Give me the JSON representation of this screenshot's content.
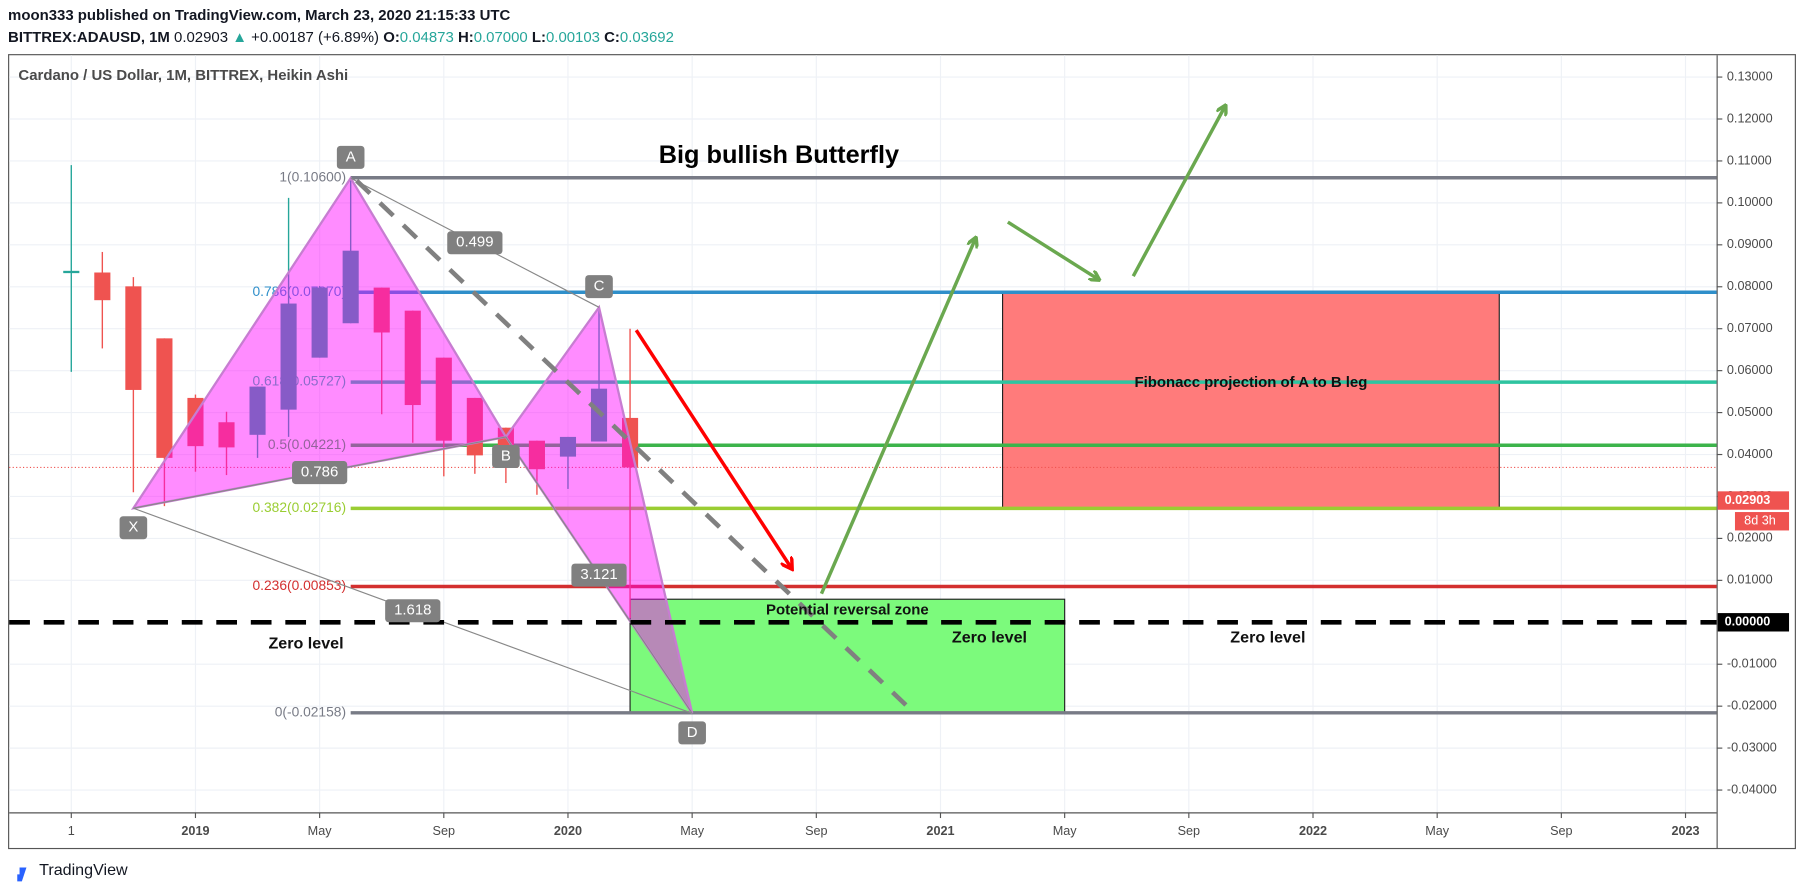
{
  "header": {
    "publisher": "moon333 published on TradingView.com, March 23, 2020 21:15:33 UTC",
    "symbol": "BITTREX:ADAUSD, 1M",
    "last": "0.02903",
    "arrow": "▲",
    "change": "+0.00187 (+6.89%)",
    "ohlc": [
      {
        "key": "O:",
        "value": "0.04873"
      },
      {
        "key": "H:",
        "value": "0.07000"
      },
      {
        "key": "L:",
        "value": "0.00103"
      },
      {
        "key": "C:",
        "value": "0.03692"
      }
    ]
  },
  "footer": {
    "brand": "TradingView"
  },
  "chart_data": {
    "type": "candlestick",
    "title": "Big bullish Butterfly",
    "legend": "Cardano / US Dollar, 1M, BITTREX, Heikin Ashi",
    "x": [
      "2018-09",
      "2018-10",
      "2018-11",
      "2018-12",
      "2019-01",
      "2019-02",
      "2019-03",
      "2019-04",
      "2019-05",
      "2019-06",
      "2019-07",
      "2019-08",
      "2019-09",
      "2019-10",
      "2019-11",
      "2019-12",
      "2020-01",
      "2020-02",
      "2020-03"
    ],
    "open": [
      0.0834,
      0.0834,
      0.0801,
      0.0677,
      0.0535,
      0.0477,
      0.0447,
      0.0507,
      0.0631,
      0.0713,
      0.0798,
      0.0743,
      0.0631,
      0.0535,
      0.0464,
      0.0433,
      0.0395,
      0.0431,
      0.04873
    ],
    "high": [
      0.109,
      0.0883,
      0.0823,
      0.0677,
      0.0543,
      0.0502,
      0.0562,
      0.1012,
      0.0802,
      0.1059,
      0.0798,
      0.0743,
      0.0631,
      0.0535,
      0.0464,
      0.0433,
      0.0442,
      0.0751,
      0.07
    ],
    "low": [
      0.0597,
      0.0653,
      0.031,
      0.0277,
      0.0359,
      0.0351,
      0.0392,
      0.0442,
      0.0631,
      0.0713,
      0.0496,
      0.0428,
      0.0348,
      0.0354,
      0.0332,
      0.0304,
      0.0318,
      0.0431,
      0.00103
    ],
    "close": [
      0.0838,
      0.0768,
      0.0554,
      0.0392,
      0.042,
      0.0417,
      0.0562,
      0.076,
      0.0798,
      0.0886,
      0.0691,
      0.0518,
      0.0433,
      0.0398,
      0.0406,
      0.0365,
      0.0442,
      0.0557,
      0.03692
    ],
    "up_color": "#26a69a",
    "down_color": "#ef5350",
    "ylim": [
      -0.0453,
      0.1352
    ],
    "yticks": [
      {
        "value": 0.13,
        "label": "0.13000"
      },
      {
        "value": 0.12,
        "label": "0.12000"
      },
      {
        "value": 0.11,
        "label": "0.11000"
      },
      {
        "value": 0.1,
        "label": "0.10000"
      },
      {
        "value": 0.09,
        "label": "0.09000"
      },
      {
        "value": 0.08,
        "label": "0.08000"
      },
      {
        "value": 0.07,
        "label": "0.07000"
      },
      {
        "value": 0.06,
        "label": "0.06000"
      },
      {
        "value": 0.05,
        "label": "0.05000"
      },
      {
        "value": 0.04,
        "label": "0.04000"
      },
      {
        "value": 0.03,
        "label": "0.03000"
      },
      {
        "value": 0.02,
        "label": "0.02000"
      },
      {
        "value": 0.01,
        "label": "0.01000"
      },
      {
        "value": -0.01,
        "label": "-0.01000"
      },
      {
        "value": -0.02,
        "label": "-0.02000"
      },
      {
        "value": -0.03,
        "label": "-0.03000"
      },
      {
        "value": -0.04,
        "label": "-0.04000"
      }
    ],
    "xlim": [
      "2018-07",
      "2023-02"
    ],
    "xticks": [
      {
        "value": "2018-09",
        "label": "1"
      },
      {
        "value": "2019-01",
        "label": "2019"
      },
      {
        "value": "2019-05",
        "label": "May"
      },
      {
        "value": "2019-09",
        "label": "Sep"
      },
      {
        "value": "2020-01",
        "label": "2020"
      },
      {
        "value": "2020-05",
        "label": "May"
      },
      {
        "value": "2020-09",
        "label": "Sep"
      },
      {
        "value": "2021-01",
        "label": "2021"
      },
      {
        "value": "2021-05",
        "label": "May"
      },
      {
        "value": "2021-09",
        "label": "Sep"
      },
      {
        "value": "2022-01",
        "label": "2022"
      },
      {
        "value": "2022-05",
        "label": "May"
      },
      {
        "value": "2022-09",
        "label": "Sep"
      },
      {
        "value": "2023-01",
        "label": "2023"
      }
    ],
    "grid": true,
    "price_tags": [
      {
        "value": 0.02903,
        "label": "0.02903",
        "color": "#ef5350"
      },
      {
        "value": 0,
        "label": "0.00000",
        "color": "#000000"
      }
    ],
    "countdown": "8d 3h",
    "last_close_line": 0.03692,
    "zero_line": 0,
    "zero_labels": [
      "Zero level",
      "Zero level",
      "Zero level"
    ],
    "fib_levels": [
      {
        "value": 0.106,
        "label": "1(0.10600)",
        "color": "#787b86"
      },
      {
        "value": 0.0787,
        "label": "0.786(0.07870)",
        "color": "#2f8fca"
      },
      {
        "value": 0.05727,
        "label": "0.618(0.05727)",
        "color": "#2ec4a0"
      },
      {
        "value": 0.04221,
        "label": "0.5(0.04221)",
        "color": "#3cb44b"
      },
      {
        "value": 0.02716,
        "label": "0.382(0.02716)",
        "color": "#9acd32"
      },
      {
        "value": 0.00853,
        "label": "0.236(0.00853)",
        "color": "#d32f2f"
      },
      {
        "value": -0.02158,
        "label": "0(-0.02158)",
        "color": "#787b86"
      }
    ],
    "pattern": {
      "color": "#ff00ff",
      "points": [
        {
          "label": "X",
          "x": "2018-11",
          "y": 0.0272
        },
        {
          "label": "A",
          "x": "2019-06",
          "y": 0.1059
        },
        {
          "label": "B",
          "x": "2019-11",
          "y": 0.0442
        },
        {
          "label": "C",
          "x": "2020-02",
          "y": 0.0751
        },
        {
          "label": "D",
          "x": "2020-05",
          "y": -0.0217
        }
      ],
      "ratios": [
        {
          "points": [
            "A",
            "C"
          ],
          "label": "0.499"
        },
        {
          "points": [
            "X",
            "B"
          ],
          "label": "0.786"
        },
        {
          "points": [
            "B",
            "D"
          ],
          "label": "3.121"
        },
        {
          "points": [
            "X",
            "D"
          ],
          "label": "1.618"
        }
      ]
    },
    "zones": [
      {
        "label": "Potential reversal zone",
        "x": [
          "2020-03",
          "2021-05"
        ],
        "y": [
          -0.02158,
          0.0055
        ],
        "color": "#7cfa7c"
      },
      {
        "label": "Fibonacc projection of A to B leg",
        "x": [
          "2021-03",
          "2022-07"
        ],
        "y": [
          0.02716,
          0.0787
        ],
        "color": "#ff7b7b"
      }
    ]
  }
}
